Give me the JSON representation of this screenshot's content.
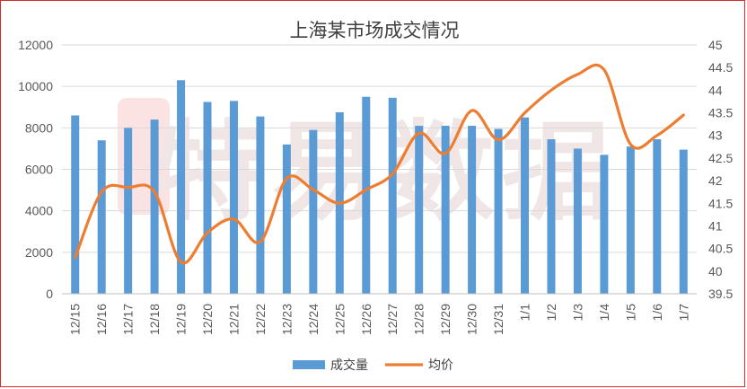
{
  "chart_data": {
    "type": "bar",
    "title": "上海某市场成交情况",
    "categories": [
      "12/15",
      "12/16",
      "12/17",
      "12/18",
      "12/19",
      "12/20",
      "12/21",
      "12/22",
      "12/23",
      "12/24",
      "12/25",
      "12/26",
      "12/27",
      "12/28",
      "12/29",
      "12/30",
      "12/31",
      "1/1",
      "1/2",
      "1/3",
      "1/4",
      "1/5",
      "1/6",
      "1/7"
    ],
    "series": [
      {
        "name": "成交量",
        "type": "bar",
        "axis": "left",
        "color": "#5b9bd5",
        "values": [
          8600,
          7400,
          8000,
          8400,
          10300,
          9250,
          9300,
          8550,
          7200,
          7900,
          8750,
          9500,
          9450,
          8100,
          8100,
          8100,
          7950,
          8500,
          7450,
          7000,
          6700,
          7100,
          7450,
          6950
        ]
      },
      {
        "name": "均价",
        "type": "line",
        "axis": "right",
        "color": "#ed7d31",
        "values": [
          40.3,
          41.75,
          41.85,
          41.75,
          40.2,
          40.85,
          41.15,
          40.65,
          42.05,
          41.8,
          41.5,
          41.8,
          42.15,
          43.05,
          42.6,
          43.55,
          42.9,
          43.5,
          44.0,
          44.35,
          44.45,
          42.8,
          43.0,
          43.45
        ]
      }
    ],
    "y_left": {
      "min": 0,
      "max": 12000,
      "ticks": [
        "0",
        "2000",
        "4000",
        "6000",
        "8000",
        "10000",
        "12000"
      ]
    },
    "y_right": {
      "min": 39.5,
      "max": 45,
      "ticks": [
        "39.5",
        "40",
        "40.5",
        "41",
        "41.5",
        "42",
        "42.5",
        "43",
        "43.5",
        "44",
        "44.5",
        "45"
      ]
    },
    "grid": true,
    "legend_position": "bottom",
    "watermark": "特易数据"
  }
}
